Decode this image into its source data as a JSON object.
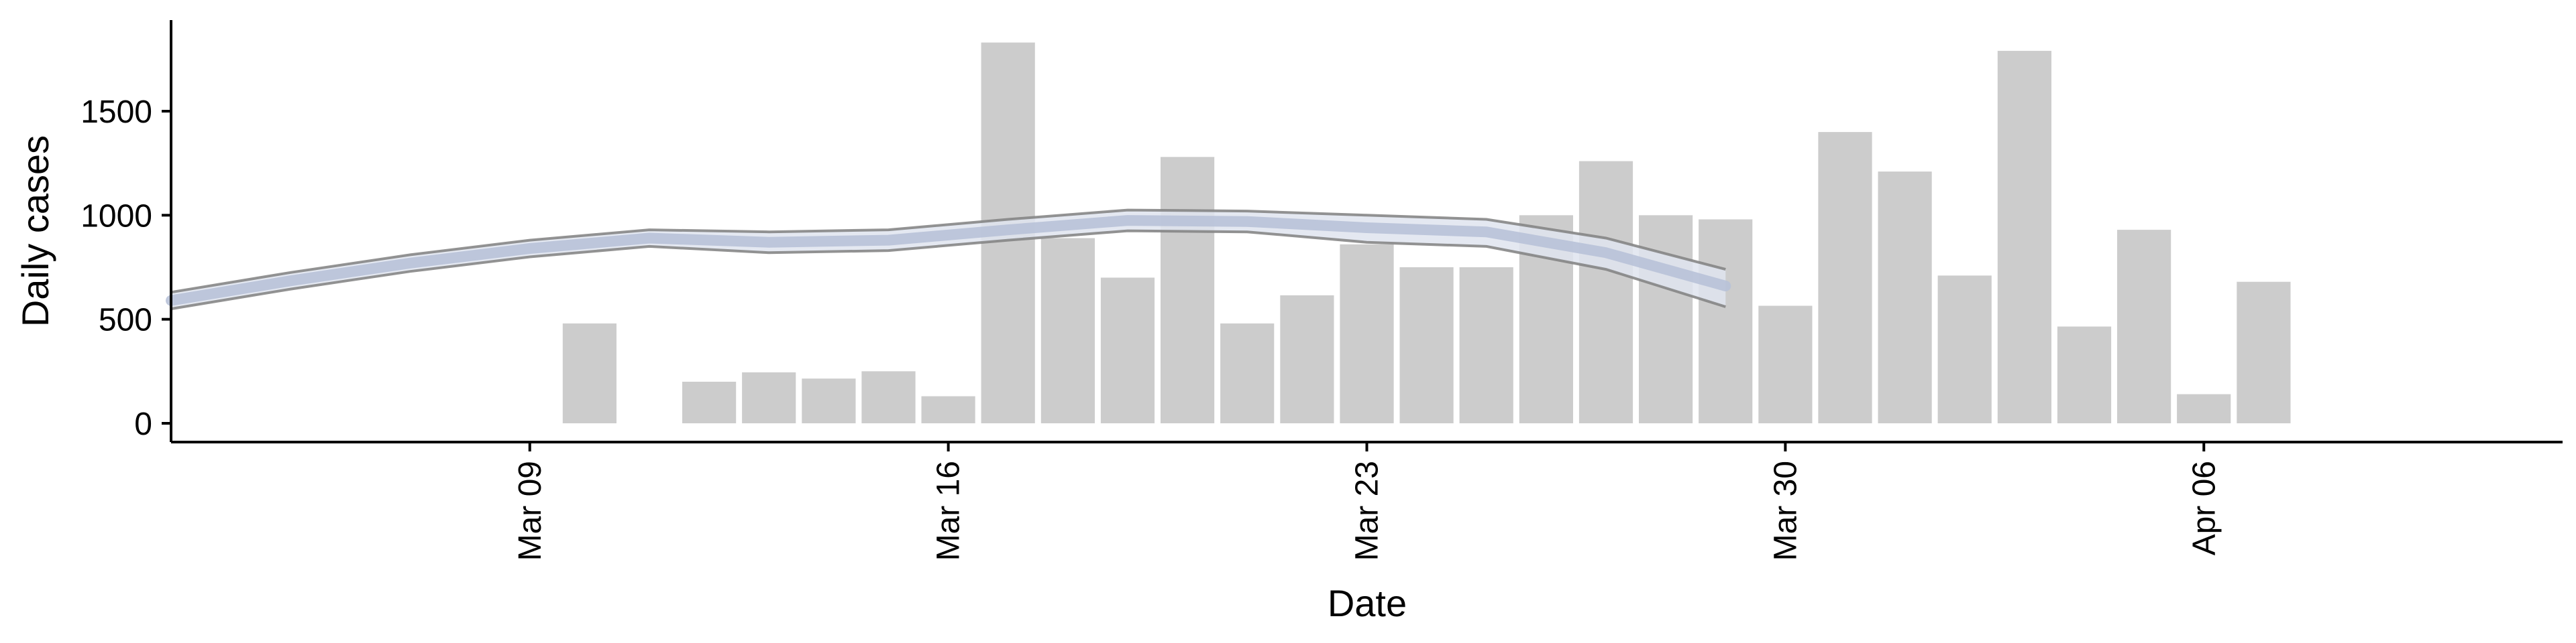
{
  "chart_data": {
    "type": "bar",
    "xlabel": "Date",
    "ylabel": "Daily cases",
    "ylim": [
      0,
      1900
    ],
    "xlim": [
      "2020-03-03",
      "2020-04-12"
    ],
    "yticks": [
      0,
      500,
      1000,
      1500
    ],
    "xticks": [
      {
        "date": "2020-03-09",
        "label": "Mar 09"
      },
      {
        "date": "2020-03-16",
        "label": "Mar 16"
      },
      {
        "date": "2020-03-23",
        "label": "Mar 23"
      },
      {
        "date": "2020-03-30",
        "label": "Mar 30"
      },
      {
        "date": "2020-04-06",
        "label": "Apr 06"
      }
    ],
    "grid": false,
    "legend": "none",
    "bars": [
      {
        "date": "2020-03-10",
        "value": 480
      },
      {
        "date": "2020-03-12",
        "value": 200
      },
      {
        "date": "2020-03-13",
        "value": 245
      },
      {
        "date": "2020-03-14",
        "value": 215
      },
      {
        "date": "2020-03-15",
        "value": 250
      },
      {
        "date": "2020-03-16",
        "value": 130
      },
      {
        "date": "2020-03-17",
        "value": 1830
      },
      {
        "date": "2020-03-18",
        "value": 890
      },
      {
        "date": "2020-03-19",
        "value": 700
      },
      {
        "date": "2020-03-20",
        "value": 1280
      },
      {
        "date": "2020-03-21",
        "value": 480
      },
      {
        "date": "2020-03-22",
        "value": 615
      },
      {
        "date": "2020-03-23",
        "value": 860
      },
      {
        "date": "2020-03-24",
        "value": 750
      },
      {
        "date": "2020-03-25",
        "value": 750
      },
      {
        "date": "2020-03-26",
        "value": 1000
      },
      {
        "date": "2020-03-27",
        "value": 1260
      },
      {
        "date": "2020-03-28",
        "value": 1000
      },
      {
        "date": "2020-03-29",
        "value": 980
      },
      {
        "date": "2020-03-30",
        "value": 565
      },
      {
        "date": "2020-03-31",
        "value": 1400
      },
      {
        "date": "2020-04-01",
        "value": 1210
      },
      {
        "date": "2020-04-02",
        "value": 710
      },
      {
        "date": "2020-04-03",
        "value": 1790
      },
      {
        "date": "2020-04-04",
        "value": 465
      },
      {
        "date": "2020-04-05",
        "value": 930
      },
      {
        "date": "2020-04-06",
        "value": 140
      },
      {
        "date": "2020-04-07",
        "value": 680
      }
    ],
    "trend": [
      {
        "date": "2020-03-03",
        "mean": 590,
        "lower": 550,
        "upper": 630
      },
      {
        "date": "2020-03-05",
        "mean": 685,
        "lower": 645,
        "upper": 725
      },
      {
        "date": "2020-03-07",
        "mean": 770,
        "lower": 730,
        "upper": 810
      },
      {
        "date": "2020-03-09",
        "mean": 840,
        "lower": 800,
        "upper": 880
      },
      {
        "date": "2020-03-11",
        "mean": 890,
        "lower": 850,
        "upper": 930
      },
      {
        "date": "2020-03-13",
        "mean": 870,
        "lower": 820,
        "upper": 920
      },
      {
        "date": "2020-03-15",
        "mean": 880,
        "lower": 830,
        "upper": 930
      },
      {
        "date": "2020-03-17",
        "mean": 930,
        "lower": 880,
        "upper": 980
      },
      {
        "date": "2020-03-19",
        "mean": 975,
        "lower": 925,
        "upper": 1025
      },
      {
        "date": "2020-03-21",
        "mean": 970,
        "lower": 920,
        "upper": 1020
      },
      {
        "date": "2020-03-23",
        "mean": 940,
        "lower": 870,
        "upper": 1000
      },
      {
        "date": "2020-03-25",
        "mean": 920,
        "lower": 850,
        "upper": 980
      },
      {
        "date": "2020-03-27",
        "mean": 820,
        "lower": 740,
        "upper": 890
      },
      {
        "date": "2020-03-29",
        "mean": 660,
        "lower": 560,
        "upper": 740
      }
    ],
    "colors": {
      "bar": "#cccccc",
      "trend_mean": "#b8c2d8",
      "trend_band": "#dfe4ef",
      "trend_bounds": "#808080",
      "axis": "#000000"
    }
  }
}
